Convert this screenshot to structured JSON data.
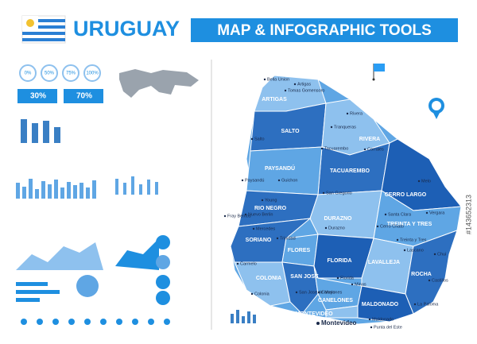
{
  "header": {
    "country": "URUGUAY",
    "title": "MAP & INFOGRAPHIC TOOLS"
  },
  "infographic": {
    "progress_labels": [
      "0%",
      "50%",
      "75%",
      "100%"
    ],
    "people_stats": [
      "30%",
      "70%"
    ]
  },
  "map": {
    "departments": [
      "ARTIGAS",
      "SALTO",
      "RIVERA",
      "PAYSANDÚ",
      "TACUAREMBO",
      "CERRO LARGO",
      "RIO NEGRO",
      "DURAZNO",
      "TREINTA Y TRES",
      "SORIANO",
      "FLORES",
      "FLORIDA",
      "LAVALLEJA",
      "COLONIA",
      "SAN JOSE",
      "CANELONES",
      "ROCHA",
      "MALDONADO",
      "MONTEVIDEO"
    ],
    "cities": [
      "Bella Union",
      "Artigas",
      "Tomas Gomensoro",
      "Rivera",
      "Tranqueras",
      "Salto",
      "Tacuarembo",
      "Corrales",
      "Paysandú",
      "Guichon",
      "San Gregorio",
      "Melo",
      "Young",
      "Fray Bentos",
      "Nuevo Berlin",
      "Mercedes",
      "Durazno",
      "Santa Clara",
      "Vergara",
      "Trinidad",
      "Cerro Chato",
      "Treinta y Tres",
      "Carmelo",
      "Florida",
      "Minas",
      "Lascano",
      "Chui",
      "Colonia",
      "San Jose de Mayo",
      "Canelones",
      "Castillos",
      "Maldonado",
      "Punta del Este",
      "La Paloma"
    ],
    "capital": "Montevideo"
  },
  "stock_id": "#143652313"
}
